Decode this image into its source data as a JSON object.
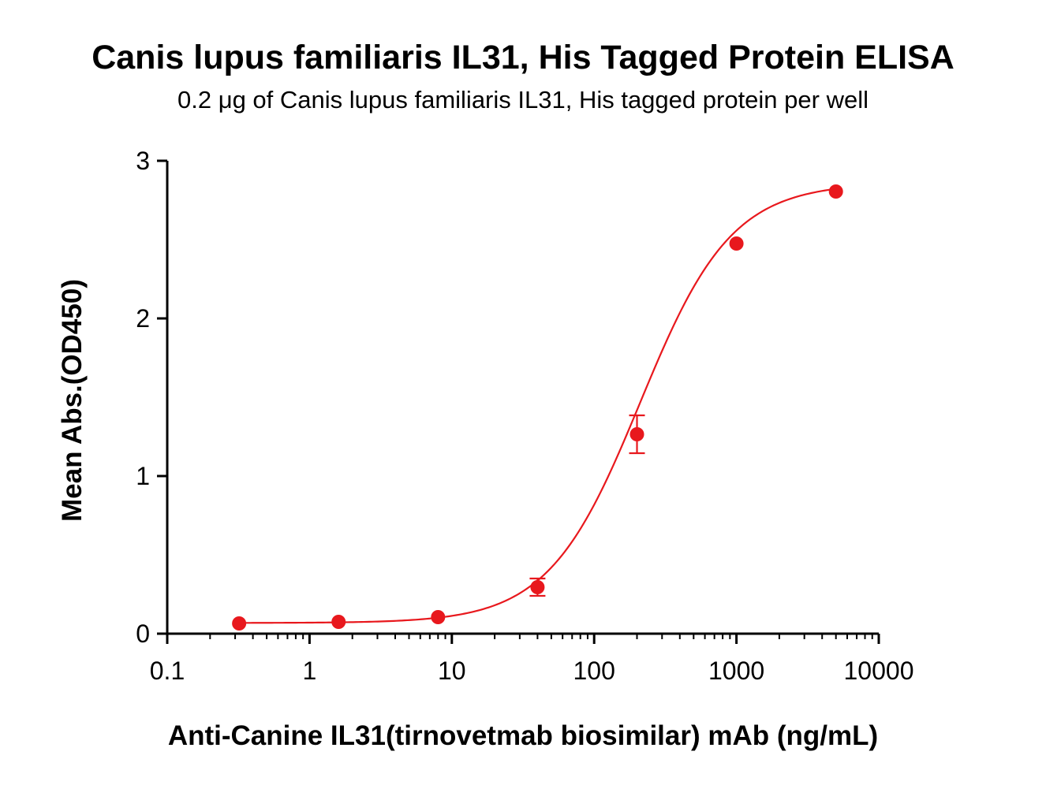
{
  "chart_data": {
    "type": "scatter",
    "title": "Canis lupus familiaris IL31, His Tagged Protein ELISA",
    "subtitle": "0.2 μg of Canis lupus familiaris IL31, His tagged protein per well",
    "xlabel": "Anti-Canine IL31(tirnovetmab biosimilar) mAb (ng/mL)",
    "ylabel": "Mean Abs.(OD450)",
    "xscale": "log",
    "xlim": [
      0.1,
      10000
    ],
    "ylim": [
      0,
      3
    ],
    "x_ticks": [
      0.1,
      1,
      10,
      100,
      1000,
      10000
    ],
    "x_tick_labels": [
      "0.1",
      "1",
      "10",
      "100",
      "1000",
      "10000"
    ],
    "y_ticks": [
      0,
      1,
      2,
      3
    ],
    "y_tick_labels": [
      "0",
      "1",
      "2",
      "3"
    ],
    "grid": false,
    "legend": "none",
    "color": "#e8181d",
    "series": [
      {
        "x": [
          0.32,
          1.6,
          8,
          40,
          200,
          1000,
          5000
        ],
        "y": [
          0.065,
          0.075,
          0.105,
          0.295,
          1.265,
          2.475,
          2.805
        ],
        "error": [
          0,
          0,
          0,
          0.055,
          0.12,
          0,
          0
        ],
        "fit": "4PL",
        "fit_params": {
          "bottom": 0.068,
          "top": 2.86,
          "ec50": 210,
          "hill": 1.35
        }
      }
    ]
  }
}
